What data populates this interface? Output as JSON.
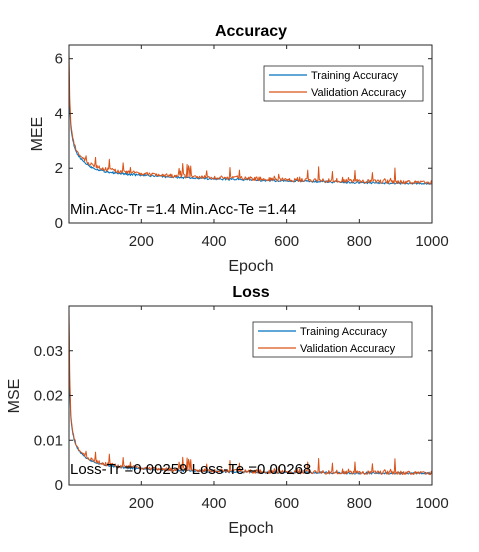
{
  "colors": {
    "training": "#0072BD",
    "validation": "#D95319",
    "training_legend": "#0072BD",
    "axis": "#262626"
  },
  "chart_data": [
    {
      "type": "line",
      "title": "Accuracy",
      "xlabel": "Epoch",
      "ylabel": "MEE",
      "xlim": [
        1,
        1000
      ],
      "ylim": [
        0,
        6.5
      ],
      "xticks": [
        200,
        400,
        600,
        800,
        1000
      ],
      "xtick_labels": [
        "200",
        "400",
        "600",
        "800",
        "1000"
      ],
      "yticks": [
        0,
        2,
        4,
        6
      ],
      "ytick_labels": [
        "0",
        "2",
        "4",
        "6"
      ],
      "grid": false,
      "legend_position": "top-right",
      "annotation": "Min.Acc-Tr =1.4 Min.Acc-Te =1.44",
      "series": [
        {
          "name": "Training Accuracy",
          "color": "#0072BD",
          "x": [
            1,
            3,
            6,
            10,
            15,
            20,
            30,
            40,
            50,
            60,
            80,
            100,
            130,
            160,
            200,
            250,
            300,
            350,
            400,
            450,
            500,
            550,
            600,
            650,
            700,
            750,
            800,
            850,
            900,
            950,
            1000
          ],
          "y": [
            5.6,
            4.3,
            3.5,
            3.1,
            2.8,
            2.6,
            2.4,
            2.25,
            2.15,
            2.05,
            1.95,
            1.88,
            1.82,
            1.78,
            1.74,
            1.7,
            1.66,
            1.63,
            1.61,
            1.59,
            1.57,
            1.55,
            1.53,
            1.52,
            1.5,
            1.49,
            1.48,
            1.46,
            1.45,
            1.44,
            1.43
          ]
        },
        {
          "name": "Validation  Accuracy",
          "color": "#D95319",
          "x": [
            1,
            3,
            6,
            10,
            15,
            20,
            30,
            40,
            50,
            60,
            80,
            100,
            130,
            160,
            200,
            250,
            300,
            350,
            400,
            450,
            500,
            550,
            600,
            650,
            700,
            750,
            800,
            850,
            900,
            950,
            1000
          ],
          "y": [
            6.2,
            4.5,
            3.7,
            3.2,
            2.9,
            2.7,
            2.5,
            2.35,
            2.25,
            2.15,
            2.05,
            1.97,
            1.9,
            1.85,
            1.81,
            1.76,
            1.72,
            1.69,
            1.66,
            1.64,
            1.62,
            1.6,
            1.58,
            1.56,
            1.55,
            1.54,
            1.53,
            1.51,
            1.5,
            1.49,
            1.48
          ]
        }
      ]
    },
    {
      "type": "line",
      "title": "Loss",
      "xlabel": "Epoch",
      "ylabel": "MSE",
      "xlim": [
        1,
        1000
      ],
      "ylim": [
        0,
        0.04
      ],
      "xticks": [
        200,
        400,
        600,
        800,
        1000
      ],
      "xtick_labels": [
        "200",
        "400",
        "600",
        "800",
        "1000"
      ],
      "yticks": [
        0,
        0.01,
        0.02,
        0.03
      ],
      "ytick_labels": [
        "0",
        "0.01",
        "0.02",
        "0.03"
      ],
      "grid": false,
      "legend_position": "top-right",
      "annotation": "Loss-Tr =0.00259 Loss-Te =0.00268",
      "series": [
        {
          "name": "Training Accuracy",
          "color": "#0072BD",
          "x": [
            1,
            3,
            6,
            10,
            15,
            20,
            30,
            40,
            50,
            60,
            80,
            100,
            130,
            160,
            200,
            250,
            300,
            350,
            400,
            450,
            500,
            550,
            600,
            650,
            700,
            750,
            800,
            850,
            900,
            950,
            1000
          ],
          "y": [
            0.036,
            0.022,
            0.015,
            0.012,
            0.01,
            0.0088,
            0.0075,
            0.0066,
            0.006,
            0.0055,
            0.0049,
            0.0045,
            0.0041,
            0.0038,
            0.0036,
            0.0034,
            0.0032,
            0.0031,
            0.003,
            0.0029,
            0.00285,
            0.0028,
            0.00277,
            0.00274,
            0.00271,
            0.00268,
            0.00266,
            0.00264,
            0.00262,
            0.0026,
            0.00259
          ]
        },
        {
          "name": "Validation  Accuracy",
          "color": "#D95319",
          "x": [
            1,
            3,
            6,
            10,
            15,
            20,
            30,
            40,
            50,
            60,
            80,
            100,
            130,
            160,
            200,
            250,
            300,
            350,
            400,
            450,
            500,
            550,
            600,
            650,
            700,
            750,
            800,
            850,
            900,
            950,
            1000
          ],
          "y": [
            0.039,
            0.024,
            0.016,
            0.0125,
            0.0105,
            0.0092,
            0.0078,
            0.0069,
            0.0063,
            0.0058,
            0.0052,
            0.0047,
            0.0043,
            0.004,
            0.0038,
            0.0036,
            0.0034,
            0.0033,
            0.0032,
            0.0031,
            0.003,
            0.00295,
            0.0029,
            0.00286,
            0.00282,
            0.00279,
            0.00276,
            0.00274,
            0.00272,
            0.0027,
            0.00268
          ]
        }
      ]
    }
  ]
}
